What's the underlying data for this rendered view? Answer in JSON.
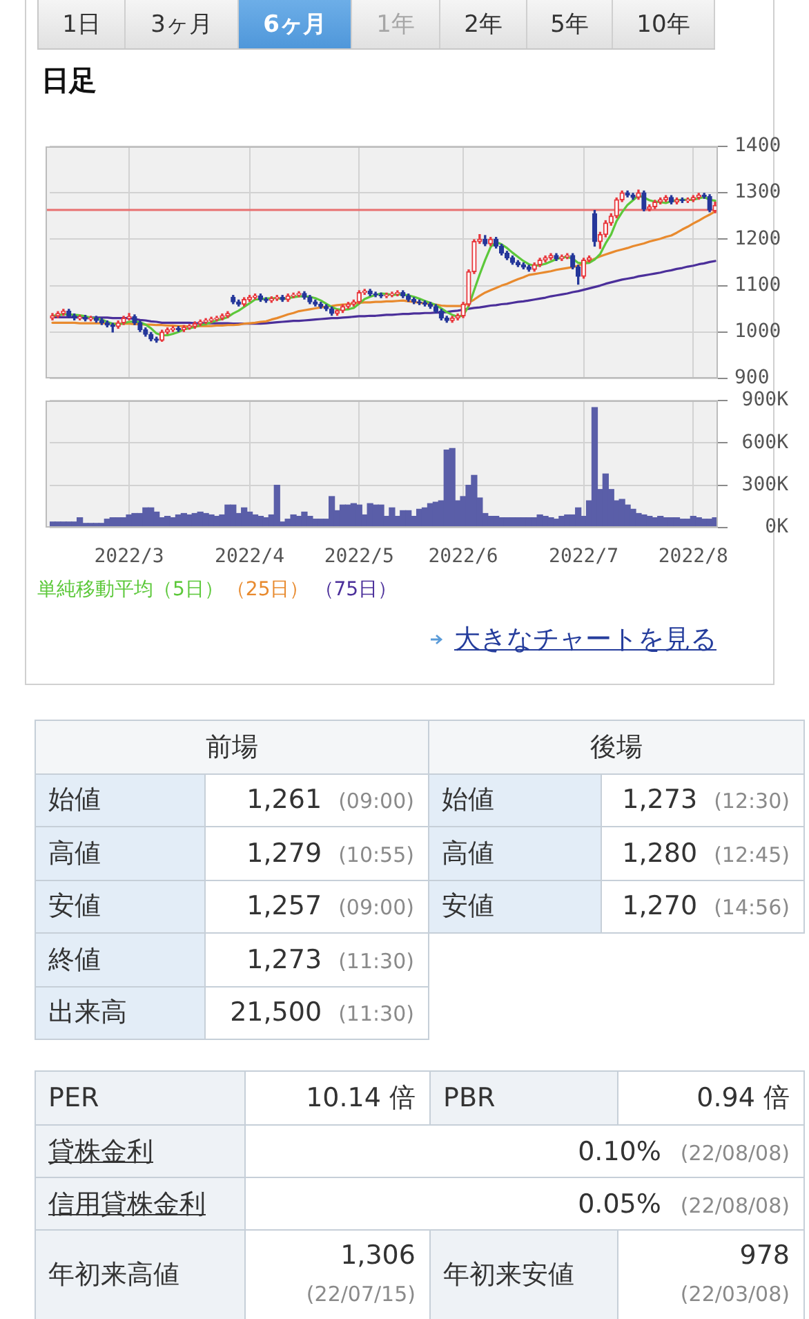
{
  "chart_data": [
    {
      "type": "other",
      "annotations": [
        "1日",
        "3ヶ月",
        "6ヶ月",
        "1年",
        "2年",
        "5年",
        "10年"
      ]
    },
    {
      "type": "candlestick",
      "title": "日足",
      "categories": [
        null,
        null,
        null,
        null,
        null,
        null,
        null,
        null,
        null,
        null,
        null,
        null,
        null,
        null,
        "2022/3",
        null,
        null,
        null,
        null,
        null,
        null,
        null,
        null,
        null,
        null,
        null,
        null,
        null,
        null,
        null,
        null,
        null,
        null,
        null,
        null,
        null,
        "2022/4",
        null,
        null,
        null,
        null,
        null,
        null,
        null,
        null,
        null,
        null,
        null,
        null,
        null,
        null,
        null,
        null,
        null,
        null,
        null,
        "2022/5",
        null,
        null,
        null,
        null,
        null,
        null,
        null,
        null,
        null,
        null,
        null,
        null,
        null,
        null,
        null,
        null,
        null,
        null,
        "2022/6",
        null,
        null,
        null,
        null,
        null,
        null,
        null,
        null,
        null,
        null,
        null,
        null,
        null,
        null,
        null,
        null,
        null,
        null,
        null,
        null,
        null,
        "2022/7",
        null,
        null,
        null,
        null,
        null,
        null,
        null,
        null,
        null,
        null,
        null,
        null,
        null,
        null,
        null,
        null,
        null,
        null,
        null,
        "2022/8",
        null,
        null,
        null,
        null
      ],
      "ohlc": [
        [
          1030,
          1040,
          1026,
          1035
        ],
        [
          1035,
          1044,
          1031,
          1040
        ],
        [
          1040,
          1049,
          1036,
          1045
        ],
        [
          1045,
          1049,
          1031,
          1035
        ],
        [
          1035,
          1039,
          1026,
          1030
        ],
        [
          1030,
          1036,
          1026,
          1032
        ],
        [
          1032,
          1036,
          1024,
          1028
        ],
        [
          1028,
          1034,
          1024,
          1030
        ],
        [
          1030,
          1034,
          1021,
          1025
        ],
        [
          1025,
          1029,
          1016,
          1020
        ],
        [
          1020,
          1024,
          1011,
          1015
        ],
        [
          1015,
          1019,
          1000,
          1012
        ],
        [
          1012,
          1024,
          1008,
          1020
        ],
        [
          1020,
          1034,
          1016,
          1030
        ],
        [
          1030,
          1040,
          1026,
          1033
        ],
        [
          1033,
          1037,
          1016,
          1020
        ],
        [
          1020,
          1024,
          1001,
          1005
        ],
        [
          1005,
          1009,
          991,
          995
        ],
        [
          995,
          999,
          981,
          985
        ],
        [
          985,
          989,
          978,
          982
        ],
        [
          982,
          1004,
          980,
          1000
        ],
        [
          1000,
          1009,
          996,
          1005
        ],
        [
          1005,
          1012,
          1001,
          1008
        ],
        [
          1008,
          1012,
          1001,
          1005
        ],
        [
          1005,
          1014,
          1001,
          1010
        ],
        [
          1010,
          1016,
          1006,
          1012
        ],
        [
          1012,
          1022,
          1008,
          1018
        ],
        [
          1018,
          1026,
          1014,
          1022
        ],
        [
          1022,
          1029,
          1018,
          1025
        ],
        [
          1025,
          1032,
          1021,
          1028
        ],
        [
          1028,
          1034,
          1024,
          1030
        ],
        [
          1030,
          1039,
          1026,
          1035
        ],
        [
          1035,
          1044,
          1031,
          1040
        ],
        [
          1075,
          1079,
          1061,
          1065
        ],
        [
          1065,
          1069,
          1056,
          1060
        ],
        [
          1060,
          1074,
          1056,
          1070
        ],
        [
          1070,
          1079,
          1066,
          1075
        ],
        [
          1075,
          1082,
          1071,
          1078
        ],
        [
          1078,
          1082,
          1066,
          1070
        ],
        [
          1070,
          1074,
          1064,
          1068
        ],
        [
          1068,
          1076,
          1064,
          1072
        ],
        [
          1072,
          1079,
          1068,
          1075
        ],
        [
          1075,
          1079,
          1066,
          1070
        ],
        [
          1070,
          1082,
          1066,
          1078
        ],
        [
          1078,
          1084,
          1074,
          1080
        ],
        [
          1080,
          1087,
          1076,
          1083
        ],
        [
          1083,
          1087,
          1071,
          1075
        ],
        [
          1075,
          1079,
          1061,
          1065
        ],
        [
          1065,
          1069,
          1056,
          1060
        ],
        [
          1060,
          1064,
          1051,
          1055
        ],
        [
          1055,
          1059,
          1046,
          1050
        ],
        [
          1050,
          1054,
          1036,
          1040
        ],
        [
          1040,
          1048,
          1036,
          1046
        ],
        [
          1046,
          1059,
          1042,
          1055
        ],
        [
          1055,
          1064,
          1051,
          1060
        ],
        [
          1060,
          1069,
          1056,
          1065
        ],
        [
          1065,
          1089,
          1061,
          1085
        ],
        [
          1085,
          1092,
          1081,
          1088
        ],
        [
          1088,
          1092,
          1078,
          1082
        ],
        [
          1082,
          1086,
          1076,
          1080
        ],
        [
          1080,
          1084,
          1074,
          1078
        ],
        [
          1078,
          1084,
          1074,
          1080
        ],
        [
          1080,
          1086,
          1076,
          1082
        ],
        [
          1082,
          1089,
          1078,
          1085
        ],
        [
          1085,
          1089,
          1074,
          1078
        ],
        [
          1078,
          1082,
          1066,
          1070
        ],
        [
          1070,
          1074,
          1061,
          1065
        ],
        [
          1065,
          1069,
          1059,
          1063
        ],
        [
          1063,
          1067,
          1056,
          1060
        ],
        [
          1060,
          1064,
          1051,
          1055
        ],
        [
          1055,
          1059,
          1041,
          1045
        ],
        [
          1045,
          1049,
          1026,
          1030
        ],
        [
          1030,
          1034,
          1021,
          1025
        ],
        [
          1025,
          1034,
          1021,
          1030
        ],
        [
          1030,
          1039,
          1026,
          1035
        ],
        [
          1035,
          1064,
          1031,
          1060
        ],
        [
          1060,
          1134,
          1056,
          1130
        ],
        [
          1130,
          1199,
          1126,
          1195
        ],
        [
          1195,
          1210,
          1191,
          1200
        ],
        [
          1200,
          1208,
          1186,
          1190
        ],
        [
          1190,
          1204,
          1186,
          1200
        ],
        [
          1200,
          1204,
          1181,
          1185
        ],
        [
          1185,
          1189,
          1166,
          1170
        ],
        [
          1170,
          1174,
          1156,
          1160
        ],
        [
          1160,
          1164,
          1146,
          1150
        ],
        [
          1150,
          1154,
          1141,
          1145
        ],
        [
          1145,
          1149,
          1136,
          1140
        ],
        [
          1140,
          1144,
          1131,
          1135
        ],
        [
          1135,
          1149,
          1131,
          1145
        ],
        [
          1145,
          1159,
          1141,
          1155
        ],
        [
          1155,
          1164,
          1151,
          1160
        ],
        [
          1160,
          1169,
          1156,
          1165
        ],
        [
          1165,
          1169,
          1154,
          1158
        ],
        [
          1158,
          1166,
          1154,
          1162
        ],
        [
          1162,
          1169,
          1158,
          1165
        ],
        [
          1165,
          1169,
          1136,
          1140
        ],
        [
          1140,
          1144,
          1103,
          1120
        ],
        [
          1120,
          1159,
          1116,
          1155
        ],
        [
          1155,
          1164,
          1151,
          1160
        ],
        [
          1255,
          1262,
          1185,
          1195
        ],
        [
          1195,
          1215,
          1180,
          1210
        ],
        [
          1210,
          1240,
          1205,
          1235
        ],
        [
          1235,
          1255,
          1230,
          1250
        ],
        [
          1250,
          1289,
          1246,
          1285
        ],
        [
          1285,
          1304,
          1281,
          1300
        ],
        [
          1300,
          1304,
          1291,
          1295
        ],
        [
          1295,
          1299,
          1286,
          1290
        ],
        [
          1290,
          1306,
          1286,
          1300
        ],
        [
          1300,
          1304,
          1261,
          1265
        ],
        [
          1265,
          1274,
          1261,
          1270
        ],
        [
          1270,
          1284,
          1266,
          1280
        ],
        [
          1280,
          1289,
          1276,
          1285
        ],
        [
          1285,
          1294,
          1281,
          1290
        ],
        [
          1290,
          1294,
          1276,
          1280
        ],
        [
          1280,
          1289,
          1276,
          1285
        ],
        [
          1285,
          1289,
          1279,
          1283
        ],
        [
          1283,
          1289,
          1279,
          1285
        ],
        [
          1285,
          1294,
          1281,
          1290
        ],
        [
          1290,
          1299,
          1286,
          1295
        ],
        [
          1295,
          1299,
          1288,
          1292
        ],
        [
          1292,
          1296,
          1259,
          1263
        ],
        [
          1261,
          1280,
          1257,
          1273
        ]
      ],
      "series": [
        {
          "name": "単純移動平均（5日）",
          "type": "line",
          "color": "#5cc83a",
          "values": [
            1035,
            1036,
            1038,
            1038,
            1037,
            1036,
            1034,
            1031,
            1029,
            1027,
            1022,
            1018,
            1016,
            1019,
            1022,
            1023,
            1021,
            1016,
            1008,
            997,
            993,
            993,
            996,
            1000,
            1006,
            1008,
            1011,
            1015,
            1017,
            1021,
            1025,
            1028,
            1032,
            1040,
            1046,
            1054,
            1062,
            1070,
            1071,
            1072,
            1073,
            1073,
            1071,
            1073,
            1075,
            1077,
            1077,
            1076,
            1073,
            1068,
            1061,
            1054,
            1049,
            1048,
            1049,
            1052,
            1061,
            1071,
            1076,
            1080,
            1083,
            1082,
            1080,
            1081,
            1081,
            1079,
            1076,
            1072,
            1067,
            1063,
            1058,
            1051,
            1043,
            1037,
            1033,
            1036,
            1056,
            1090,
            1124,
            1155,
            1183,
            1194,
            1189,
            1181,
            1171,
            1162,
            1153,
            1146,
            1143,
            1144,
            1147,
            1152,
            1157,
            1160,
            1162,
            1158,
            1149,
            1148,
            1149,
            1156,
            1168,
            1191,
            1210,
            1239,
            1258,
            1274,
            1284,
            1294,
            1290,
            1284,
            1281,
            1280,
            1278,
            1282,
            1284,
            1285,
            1285,
            1285,
            1288,
            1291,
            1285,
            1283
          ]
        },
        {
          "name": "（25日）",
          "type": "line",
          "color": "#e88a2e",
          "values": [
            1020,
            1020,
            1020,
            1020,
            1020,
            1019,
            1019,
            1019,
            1019,
            1019,
            1019,
            1018,
            1018,
            1018,
            1018,
            1017,
            1017,
            1016,
            1016,
            1015,
            1015,
            1014,
            1014,
            1013,
            1013,
            1012,
            1012,
            1013,
            1013,
            1013,
            1014,
            1014,
            1015,
            1015,
            1016,
            1018,
            1019,
            1020,
            1022,
            1023,
            1027,
            1030,
            1034,
            1038,
            1041,
            1045,
            1047,
            1049,
            1051,
            1053,
            1055,
            1056,
            1058,
            1059,
            1060,
            1062,
            1063,
            1064,
            1064,
            1065,
            1065,
            1066,
            1066,
            1067,
            1068,
            1066,
            1065,
            1063,
            1062,
            1060,
            1059,
            1057,
            1056,
            1056,
            1056,
            1056,
            1063,
            1070,
            1078,
            1085,
            1090,
            1095,
            1100,
            1104,
            1109,
            1114,
            1118,
            1123,
            1125,
            1127,
            1129,
            1131,
            1134,
            1136,
            1138,
            1140,
            1143,
            1148,
            1153,
            1158,
            1163,
            1167,
            1171,
            1175,
            1178,
            1181,
            1185,
            1188,
            1191,
            1195,
            1198,
            1201,
            1205,
            1208,
            1214,
            1221,
            1227,
            1234,
            1240,
            1247,
            1253,
            1260
          ]
        },
        {
          "name": "（75日）",
          "type": "line",
          "color": "#4b2f9a",
          "values": [
            1032,
            1032,
            1032,
            1032,
            1032,
            1031,
            1031,
            1031,
            1031,
            1031,
            1031,
            1030,
            1030,
            1030,
            1030,
            1028,
            1026,
            1025,
            1023,
            1022,
            1020,
            1020,
            1020,
            1020,
            1020,
            1020,
            1019,
            1019,
            1019,
            1019,
            1019,
            1019,
            1019,
            1018,
            1018,
            1018,
            1018,
            1018,
            1018,
            1019,
            1020,
            1021,
            1022,
            1023,
            1024,
            1024,
            1025,
            1026,
            1027,
            1028,
            1029,
            1030,
            1030,
            1031,
            1032,
            1033,
            1034,
            1034,
            1035,
            1035,
            1036,
            1037,
            1037,
            1038,
            1039,
            1039,
            1040,
            1040,
            1041,
            1041,
            1042,
            1042,
            1043,
            1045,
            1046,
            1048,
            1050,
            1052,
            1053,
            1055,
            1057,
            1058,
            1060,
            1061,
            1063,
            1065,
            1066,
            1068,
            1070,
            1072,
            1074,
            1077,
            1079,
            1081,
            1083,
            1086,
            1088,
            1091,
            1094,
            1097,
            1100,
            1104,
            1107,
            1110,
            1113,
            1115,
            1117,
            1120,
            1122,
            1124,
            1126,
            1128,
            1131,
            1133,
            1136,
            1138,
            1141,
            1143,
            1146,
            1148,
            1151,
            1153
          ]
        }
      ],
      "ylim": [
        900,
        1400
      ],
      "yticks": [
        900,
        1000,
        1100,
        1200,
        1300,
        1400
      ],
      "ref_lines": [
        {
          "axis": "y",
          "value": 1263,
          "color": "#e87070"
        }
      ],
      "grid": true,
      "legend": "bottom",
      "marker": "none",
      "tick_labels": "y",
      "annotations": [
        "大きなチャートを見る"
      ]
    },
    {
      "type": "bar",
      "categories": [
        null,
        null,
        null,
        null,
        null,
        null,
        null,
        null,
        null,
        null,
        null,
        null,
        null,
        null,
        "2022/3",
        null,
        null,
        null,
        null,
        null,
        null,
        null,
        null,
        null,
        null,
        null,
        null,
        null,
        null,
        null,
        null,
        null,
        null,
        null,
        null,
        null,
        "2022/4",
        null,
        null,
        null,
        null,
        null,
        null,
        null,
        null,
        null,
        null,
        null,
        null,
        null,
        null,
        null,
        null,
        null,
        null,
        null,
        "2022/5",
        null,
        null,
        null,
        null,
        null,
        null,
        null,
        null,
        null,
        null,
        null,
        null,
        null,
        null,
        null,
        null,
        null,
        null,
        "2022/6",
        null,
        null,
        null,
        null,
        null,
        null,
        null,
        null,
        null,
        null,
        null,
        null,
        null,
        null,
        null,
        null,
        null,
        null,
        null,
        null,
        null,
        "2022/7",
        null,
        null,
        null,
        null,
        null,
        null,
        null,
        null,
        null,
        null,
        null,
        null,
        null,
        null,
        null,
        null,
        null,
        null,
        null,
        "2022/8",
        null,
        null,
        null,
        null
      ],
      "values": [
        40000,
        40000,
        40000,
        40000,
        40000,
        70000,
        30000,
        30000,
        30000,
        30000,
        60000,
        70000,
        70000,
        70000,
        90000,
        100000,
        100000,
        140000,
        140000,
        110000,
        70000,
        80000,
        70000,
        90000,
        100000,
        90000,
        100000,
        110000,
        100000,
        90000,
        80000,
        90000,
        160000,
        160000,
        100000,
        140000,
        110000,
        90000,
        80000,
        70000,
        90000,
        300000,
        40000,
        60000,
        90000,
        80000,
        110000,
        80000,
        60000,
        60000,
        60000,
        220000,
        120000,
        160000,
        160000,
        170000,
        160000,
        90000,
        170000,
        160000,
        160000,
        80000,
        140000,
        80000,
        120000,
        120000,
        80000,
        130000,
        140000,
        170000,
        180000,
        190000,
        550000,
        560000,
        190000,
        220000,
        300000,
        370000,
        210000,
        100000,
        80000,
        80000,
        70000,
        70000,
        70000,
        70000,
        70000,
        70000,
        70000,
        90000,
        80000,
        70000,
        60000,
        80000,
        90000,
        90000,
        140000,
        80000,
        190000,
        850000,
        270000,
        380000,
        270000,
        190000,
        200000,
        160000,
        130000,
        100000,
        90000,
        80000,
        70000,
        80000,
        70000,
        70000,
        70000,
        60000,
        60000,
        80000,
        70000,
        60000,
        60000,
        70000
      ],
      "color": "#5a5ea8",
      "ylim": [
        0,
        900000
      ],
      "yticks": [
        {
          "value": 0,
          "label": "0K"
        },
        {
          "value": 300000,
          "label": "300K"
        },
        {
          "value": 600000,
          "label": "600K"
        },
        {
          "value": 900000,
          "label": "900K"
        }
      ],
      "grid": true
    },
    {
      "type": "other",
      "annotations": [
        "前場",
        "後場",
        "始値",
        "1,261",
        "(09:00)",
        "始値",
        "1,273",
        "(12:30)",
        "高値",
        "1,279",
        "(10:55)",
        "高値",
        "1,280",
        "(12:45)",
        "安値",
        "1,257",
        "(09:00)",
        "安値",
        "1,270",
        "(14:56)",
        "終値",
        "1,273",
        "(11:30)",
        "出来高",
        "21,500",
        "(11:30)"
      ]
    },
    {
      "type": "other",
      "annotations": [
        "PER",
        "10.14 倍",
        "PBR",
        "0.94 倍",
        "貸株金利",
        "0.10%",
        "(22/08/08)",
        "信用貸株金利",
        "0.05%",
        "(22/08/08)",
        "年初来高値",
        "1,306",
        "(22/07/15)",
        "年初来安値",
        "978",
        "(22/03/08)"
      ]
    }
  ]
}
